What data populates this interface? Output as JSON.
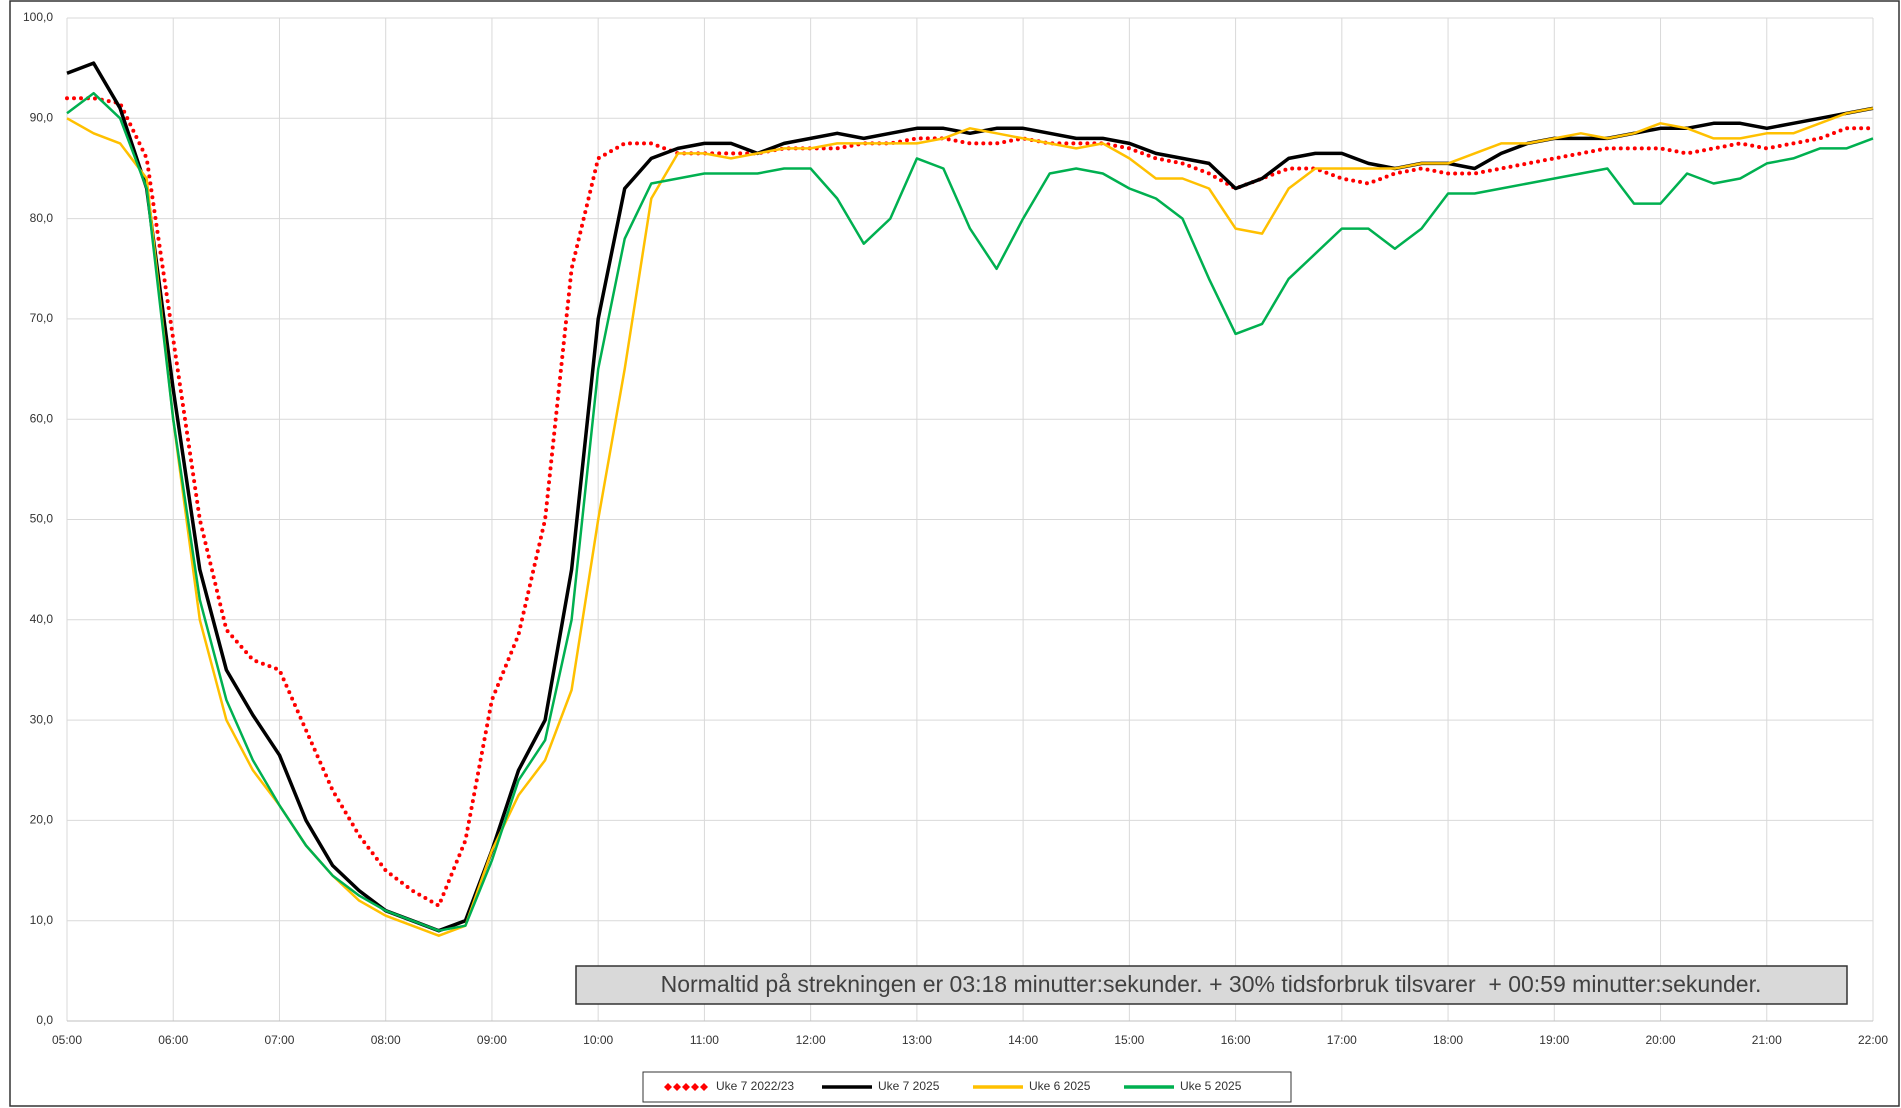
{
  "chart_data": {
    "type": "line",
    "x": [
      5,
      5.25,
      5.5,
      5.75,
      6,
      6.25,
      6.5,
      6.75,
      7,
      7.25,
      7.5,
      7.75,
      8,
      8.25,
      8.5,
      8.75,
      9,
      9.25,
      9.5,
      9.75,
      10,
      10.25,
      10.5,
      10.75,
      11,
      11.25,
      11.5,
      11.75,
      12,
      12.25,
      12.5,
      12.75,
      13,
      13.25,
      13.5,
      13.75,
      14,
      14.25,
      14.5,
      14.75,
      15,
      15.25,
      15.5,
      15.75,
      16,
      16.25,
      16.5,
      16.75,
      17,
      17.25,
      17.5,
      17.75,
      18,
      18.25,
      18.5,
      18.75,
      19,
      19.25,
      19.5,
      19.75,
      20,
      20.25,
      20.5,
      20.75,
      21,
      21.25,
      21.5,
      21.75,
      22
    ],
    "series": [
      {
        "name": "Uke 7 2022/23",
        "color": "#ff0000",
        "style": "dotted",
        "values": [
          92,
          92,
          91.5,
          86,
          68,
          50,
          39,
          36,
          35,
          29,
          23,
          18.5,
          15,
          13,
          11.5,
          18,
          32,
          38.5,
          50,
          75,
          86,
          87.5,
          87.5,
          86.5,
          86.5,
          86.5,
          86.5,
          87,
          87,
          87,
          87.5,
          87.5,
          88,
          88,
          87.5,
          87.5,
          88,
          87.5,
          87.5,
          87.5,
          87,
          86,
          85.5,
          84.5,
          83,
          84,
          85,
          85,
          84,
          83.5,
          84.5,
          85,
          84.5,
          84.5,
          85,
          85.5,
          86,
          86.5,
          87,
          87,
          87,
          86.5,
          87,
          87.5,
          87,
          87.5,
          88,
          89,
          89
        ]
      },
      {
        "name": "Uke 7 2025",
        "color": "#000000",
        "style": "solid",
        "values": [
          94.5,
          95.5,
          91,
          83,
          63,
          45,
          35,
          30.5,
          26.5,
          20,
          15.5,
          13,
          11,
          10,
          9,
          10,
          17,
          25,
          30,
          45,
          70,
          83,
          86,
          87,
          87.5,
          87.5,
          86.5,
          87.5,
          88,
          88.5,
          88,
          88.5,
          89,
          89,
          88.5,
          89,
          89,
          88.5,
          88,
          88,
          87.5,
          86.5,
          86,
          85.5,
          83,
          84,
          86,
          86.5,
          86.5,
          85.5,
          85,
          85.5,
          85.5,
          85,
          86.5,
          87.5,
          88,
          88,
          88,
          88.5,
          89,
          89,
          89.5,
          89.5,
          89,
          89.5,
          90,
          90.5,
          91
        ]
      },
      {
        "name": "Uke 6 2025",
        "color": "#ffc000",
        "style": "solid",
        "values": [
          90,
          88.5,
          87.5,
          84,
          60,
          40,
          30,
          25,
          21.5,
          17.5,
          14.5,
          12,
          10.5,
          9.5,
          8.5,
          9.5,
          17,
          22.5,
          26,
          33,
          50,
          65,
          82,
          86.5,
          86.5,
          86,
          86.5,
          87,
          87,
          87.5,
          87.5,
          87.5,
          87.5,
          88,
          89,
          88.5,
          88,
          87.5,
          87,
          87.5,
          86,
          84,
          84,
          83,
          79,
          78.5,
          83,
          85,
          85,
          85,
          85,
          85.5,
          85.5,
          86.5,
          87.5,
          87.5,
          88,
          88.5,
          88,
          88.5,
          89.5,
          89,
          88,
          88,
          88.5,
          88.5,
          89.5,
          90.5,
          91
        ]
      },
      {
        "name": "Uke 5 2025",
        "color": "#00b050",
        "style": "solid",
        "values": [
          90.5,
          92.5,
          90,
          83,
          60,
          42,
          32,
          26,
          21.5,
          17.5,
          14.5,
          12.5,
          11,
          10,
          9,
          9.5,
          16,
          24,
          28,
          40,
          65,
          78,
          83.5,
          84,
          84.5,
          84.5,
          84.5,
          85,
          85,
          82,
          77.5,
          80,
          86,
          85,
          79,
          75,
          80,
          84.5,
          85,
          84.5,
          83,
          82,
          80,
          74,
          68.5,
          69.5,
          74,
          76.5,
          79,
          79,
          77,
          79,
          82.5,
          82.5,
          83,
          83.5,
          84,
          84.5,
          85,
          81.5,
          81.5,
          84.5,
          83.5,
          84,
          85.5,
          86,
          87,
          87,
          88
        ]
      }
    ],
    "xlim": [
      5,
      22
    ],
    "xticks": [
      {
        "value": 5,
        "label": "05:00"
      },
      {
        "value": 6,
        "label": "06:00"
      },
      {
        "value": 7,
        "label": "07:00"
      },
      {
        "value": 8,
        "label": "08:00"
      },
      {
        "value": 9,
        "label": "09:00"
      },
      {
        "value": 10,
        "label": "10:00"
      },
      {
        "value": 11,
        "label": "11:00"
      },
      {
        "value": 12,
        "label": "12:00"
      },
      {
        "value": 13,
        "label": "13:00"
      },
      {
        "value": 14,
        "label": "14:00"
      },
      {
        "value": 15,
        "label": "15:00"
      },
      {
        "value": 16,
        "label": "16:00"
      },
      {
        "value": 17,
        "label": "17:00"
      },
      {
        "value": 18,
        "label": "18:00"
      },
      {
        "value": 19,
        "label": "19:00"
      },
      {
        "value": 20,
        "label": "20:00"
      },
      {
        "value": 21,
        "label": "21:00"
      },
      {
        "value": 22,
        "label": "22:00"
      }
    ],
    "ylim": [
      0,
      100
    ],
    "yticks": [
      {
        "value": 0,
        "label": "0,0"
      },
      {
        "value": 10,
        "label": "10,0"
      },
      {
        "value": 20,
        "label": "20,0"
      },
      {
        "value": 30,
        "label": "30,0"
      },
      {
        "value": 40,
        "label": "40,0"
      },
      {
        "value": 50,
        "label": "50,0"
      },
      {
        "value": 60,
        "label": "60,0"
      },
      {
        "value": 70,
        "label": "70,0"
      },
      {
        "value": 80,
        "label": "80,0"
      },
      {
        "value": 90,
        "label": "90,0"
      },
      {
        "value": 100,
        "label": "100,0"
      }
    ],
    "grid": true,
    "legend": "bottom",
    "annotation": "Normaltid på strekningen er 03:18 minutter:sekunder. + 30% tidsforbruk tilsvarer  + 00:59 minutter:sekunder."
  }
}
